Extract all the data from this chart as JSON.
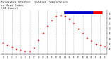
{
  "title_line1": "Milwaukee Weather  Outdoor Temperature",
  "title_line2": "vs Heat Index",
  "title_line3": "(24 Hours)",
  "title_fontsize": 3.0,
  "background_color": "#ffffff",
  "grid_color": "#aaaaaa",
  "x_hours": [
    0,
    1,
    2,
    3,
    4,
    5,
    6,
    7,
    8,
    9,
    10,
    11,
    12,
    13,
    14,
    15,
    16,
    17,
    18,
    19,
    20,
    21,
    22,
    23
  ],
  "x_labels": [
    "0",
    "1",
    "2",
    "3",
    "4",
    "5",
    "6",
    "7",
    "8",
    "9",
    "10",
    "11",
    "12",
    "13",
    "14",
    "15",
    "16",
    "17",
    "18",
    "19",
    "20",
    "21",
    "22",
    "23"
  ],
  "temp_values": [
    55,
    53,
    51,
    49,
    48,
    47,
    47,
    50,
    58,
    65,
    72,
    78,
    82,
    83,
    82,
    79,
    75,
    69,
    65,
    60,
    57,
    54,
    53,
    52
  ],
  "ylim": [
    44,
    88
  ],
  "yticks": [
    50,
    55,
    60,
    65,
    70,
    75,
    80,
    85
  ],
  "temp_color": "#ff0000",
  "heat_color": "#0000ff",
  "dot_size": 1.4,
  "legend_temp_color": "#ff0000",
  "legend_heat_color": "#0000cc",
  "vgrid_positions": [
    0,
    2,
    4,
    6,
    8,
    10,
    12,
    14,
    16,
    18,
    20,
    22
  ]
}
